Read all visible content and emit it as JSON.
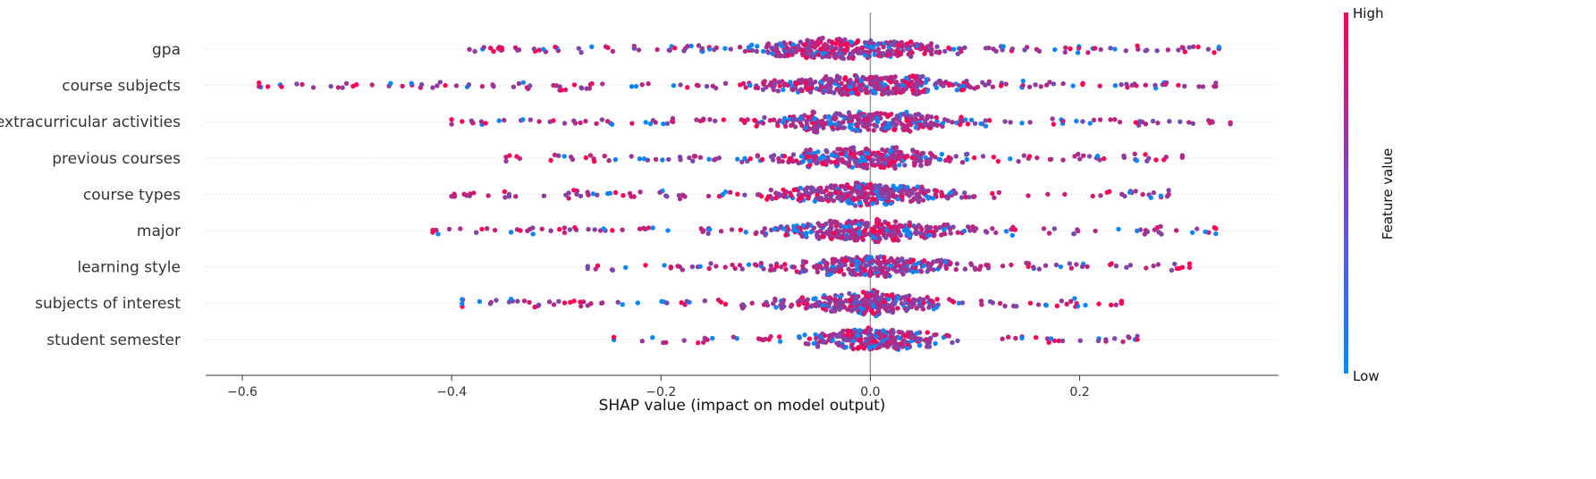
{
  "chart_data": {
    "type": "scatter",
    "subtype": "beeswarm",
    "title": "",
    "xlabel": "SHAP value (impact on model output)",
    "xlim": [
      -0.635,
      0.39
    ],
    "xticks": [
      -0.6,
      -0.4,
      -0.2,
      0.0,
      0.2
    ],
    "xtick_labels": [
      "−0.6",
      "−0.4",
      "−0.2",
      "0.0",
      "0.2"
    ],
    "zero_line": true,
    "features": [
      {
        "name": "gpa",
        "min": -0.383,
        "max": 0.333,
        "spread": 0.085,
        "center": -0.06,
        "count": 420,
        "outliers": [
          -0.383,
          -0.36,
          0.333,
          0.298
        ]
      },
      {
        "name": "course subjects",
        "min": -0.584,
        "max": 0.33,
        "spread": 0.09,
        "center": -0.02,
        "count": 430,
        "outliers": [
          -0.584,
          -0.447,
          -0.418,
          0.33,
          0.272
        ]
      },
      {
        "name": "extracurricular activities",
        "min": -0.4,
        "max": 0.344,
        "spread": 0.085,
        "center": -0.02,
        "count": 380,
        "outliers": [
          -0.4,
          -0.39,
          -0.38,
          -0.35,
          0.344,
          0.327
        ]
      },
      {
        "name": "previous courses",
        "min": -0.348,
        "max": 0.298,
        "spread": 0.07,
        "center": -0.01,
        "count": 360,
        "outliers": [
          -0.348,
          -0.286,
          0.298,
          0.273
        ]
      },
      {
        "name": "course types",
        "min": -0.4,
        "max": 0.285,
        "spread": 0.08,
        "center": -0.02,
        "count": 400,
        "outliers": [
          -0.4,
          -0.365,
          -0.345,
          0.285,
          0.268
        ]
      },
      {
        "name": "major",
        "min": -0.418,
        "max": 0.33,
        "spread": 0.08,
        "center": -0.01,
        "count": 400,
        "outliers": [
          -0.418,
          -0.287,
          0.33,
          0.32,
          0.312
        ]
      },
      {
        "name": "learning style",
        "min": -0.27,
        "max": 0.305,
        "spread": 0.065,
        "center": 0.0,
        "count": 350,
        "outliers": [
          -0.27,
          0.305,
          0.275
        ]
      },
      {
        "name": "subjects of interest",
        "min": -0.39,
        "max": 0.24,
        "spread": 0.065,
        "center": -0.01,
        "count": 360,
        "outliers": [
          -0.39,
          -0.345,
          0.24
        ]
      },
      {
        "name": "student semester",
        "min": -0.245,
        "max": 0.255,
        "spread": 0.055,
        "center": 0.0,
        "count": 300,
        "outliers": [
          -0.245,
          0.255,
          0.225
        ]
      }
    ],
    "colorbar": {
      "label": "Feature value",
      "high_label": "High",
      "low_label": "Low",
      "high_color": "#ff0052",
      "low_color": "#008bfb"
    },
    "colors": {
      "axis": "#333333",
      "grid": "#cccccc",
      "zero_line": "#999999"
    }
  }
}
